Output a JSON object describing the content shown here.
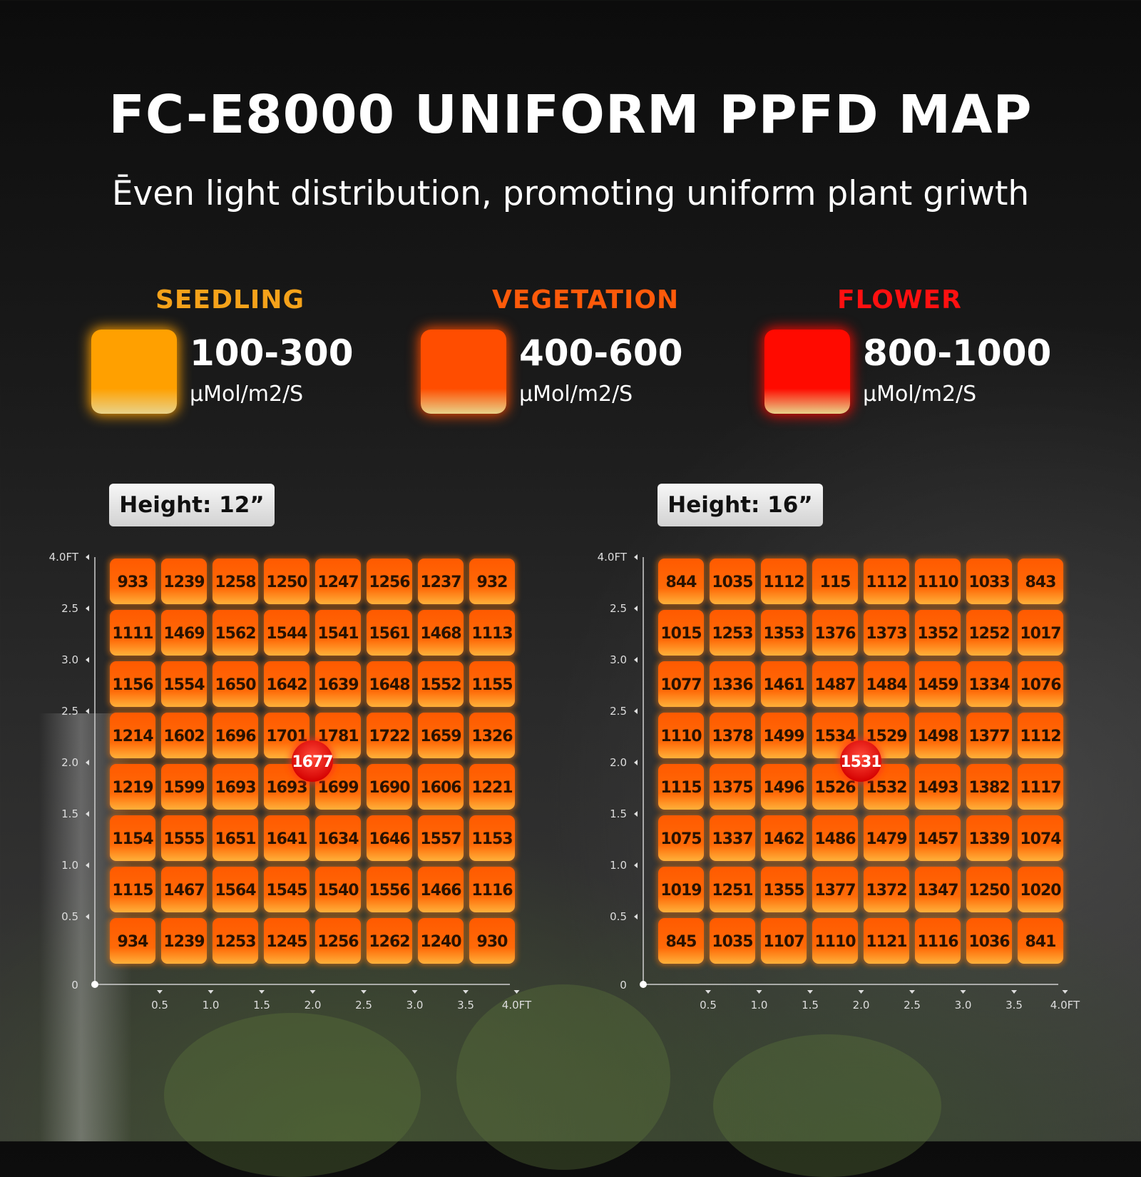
{
  "title": "FC-E8000 UNIFORM PPFD MAP",
  "subtitle": "Ēven light distribution, promoting uniform plant griwth",
  "legend": [
    {
      "name": "SEEDLING",
      "range": "100-300",
      "unit": "μMol/m2/S",
      "color": "#ffa000",
      "label_color": "#f5a21a"
    },
    {
      "name": "VEGETATION",
      "range": "400-600",
      "unit": "μMol/m2/S",
      "color": "#ff4d00",
      "label_color": "#ff5a0a"
    },
    {
      "name": "FLOWER",
      "range": "800-1000",
      "unit": "μMol/m2/S",
      "color": "#ff0a00",
      "label_color": "#ff1010"
    }
  ],
  "chart_data": [
    {
      "type": "heatmap",
      "height_label": "Height: 12”",
      "center_value": "1677",
      "x_tick_labels": [
        "0.5",
        "1.0",
        "1.5",
        "2.0",
        "2.5",
        "3.0",
        "3.5",
        "4.0FT"
      ],
      "y_tick_labels": [
        "4.0FT",
        "2.5",
        "3.0",
        "2.5",
        "2.0",
        "1.5",
        "1.0",
        "0.5"
      ],
      "origin_label": "0",
      "values": [
        [
          933,
          1239,
          1258,
          1250,
          1247,
          1256,
          1237,
          932
        ],
        [
          1111,
          1469,
          1562,
          1544,
          1541,
          1561,
          1468,
          1113
        ],
        [
          1156,
          1554,
          1650,
          1642,
          1639,
          1648,
          1552,
          1155
        ],
        [
          1214,
          1602,
          1696,
          1701,
          1781,
          1722,
          1659,
          1326
        ],
        [
          1219,
          1599,
          1693,
          1693,
          1699,
          1690,
          1606,
          1221
        ],
        [
          1154,
          1555,
          1651,
          1641,
          1634,
          1646,
          1557,
          1153
        ],
        [
          1115,
          1467,
          1564,
          1545,
          1540,
          1556,
          1466,
          1116
        ],
        [
          934,
          1239,
          1253,
          1245,
          1256,
          1262,
          1240,
          930
        ]
      ]
    },
    {
      "type": "heatmap",
      "height_label": "Height: 16”",
      "center_value": "1531",
      "x_tick_labels": [
        "0.5",
        "1.0",
        "1.5",
        "2.0",
        "2.5",
        "3.0",
        "3.5",
        "4.0FT"
      ],
      "y_tick_labels": [
        "4.0FT",
        "2.5",
        "3.0",
        "2.5",
        "2.0",
        "1.5",
        "1.0",
        "0.5"
      ],
      "origin_label": "0",
      "values": [
        [
          844,
          1035,
          1112,
          115,
          1112,
          1110,
          1033,
          843
        ],
        [
          1015,
          1253,
          1353,
          1376,
          1373,
          1352,
          1252,
          1017
        ],
        [
          1077,
          1336,
          1461,
          1487,
          1484,
          1459,
          1334,
          1076
        ],
        [
          1110,
          1378,
          1499,
          1534,
          1529,
          1498,
          1377,
          1112
        ],
        [
          1115,
          1375,
          1496,
          1526,
          1532,
          1493,
          1382,
          1117
        ],
        [
          1075,
          1337,
          1462,
          1486,
          1479,
          1457,
          1339,
          1074
        ],
        [
          1019,
          1251,
          1355,
          1377,
          1372,
          1347,
          1250,
          1020
        ],
        [
          845,
          1035,
          1107,
          1110,
          1121,
          1116,
          1036,
          841
        ]
      ]
    }
  ]
}
